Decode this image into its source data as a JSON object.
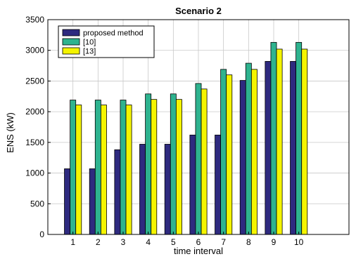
{
  "chart_data": {
    "type": "bar",
    "title": "Scenario 2",
    "xlabel": "time interval",
    "ylabel": "ENS (kW)",
    "categories": [
      "1",
      "2",
      "3",
      "4",
      "5",
      "6",
      "7",
      "8",
      "9",
      "10"
    ],
    "x_range": [
      0,
      12
    ],
    "ylim": [
      0,
      3500
    ],
    "yticks": [
      0,
      500,
      1000,
      1500,
      2000,
      2500,
      3000,
      3500
    ],
    "grid": true,
    "legend_position": "top-left",
    "series": [
      {
        "name": "proposed method",
        "color": "#2e2a7f",
        "values": [
          1070,
          1070,
          1380,
          1470,
          1470,
          1620,
          1620,
          2510,
          2820,
          2820
        ]
      },
      {
        "name": "[10]",
        "color": "#2eb38f",
        "values": [
          2190,
          2190,
          2190,
          2290,
          2290,
          2460,
          2690,
          2790,
          3130,
          3130
        ]
      },
      {
        "name": "[13]",
        "color": "#f5f500",
        "values": [
          2110,
          2110,
          2110,
          2200,
          2200,
          2370,
          2600,
          2690,
          3020,
          3020
        ]
      }
    ]
  }
}
